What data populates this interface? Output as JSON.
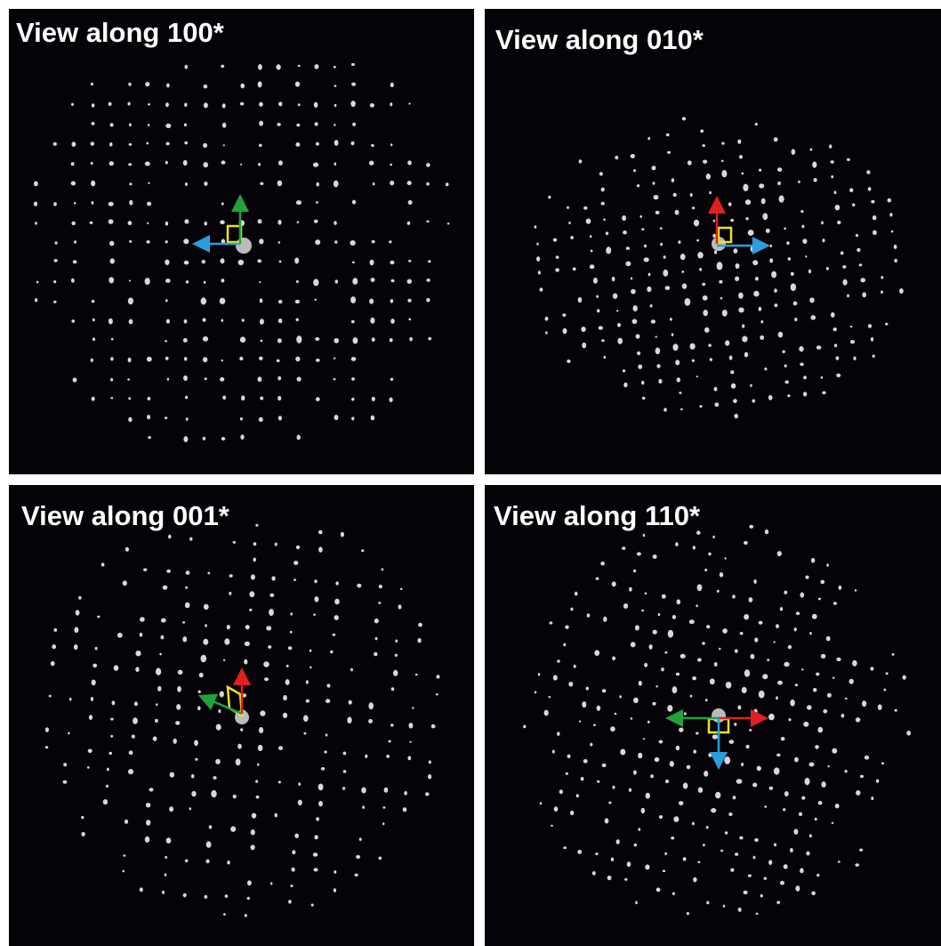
{
  "panels": [
    {
      "title": "View along 100*"
    },
    {
      "title": "View along 010*"
    },
    {
      "title": "View along 001*"
    },
    {
      "title": "View along 110*"
    }
  ]
}
